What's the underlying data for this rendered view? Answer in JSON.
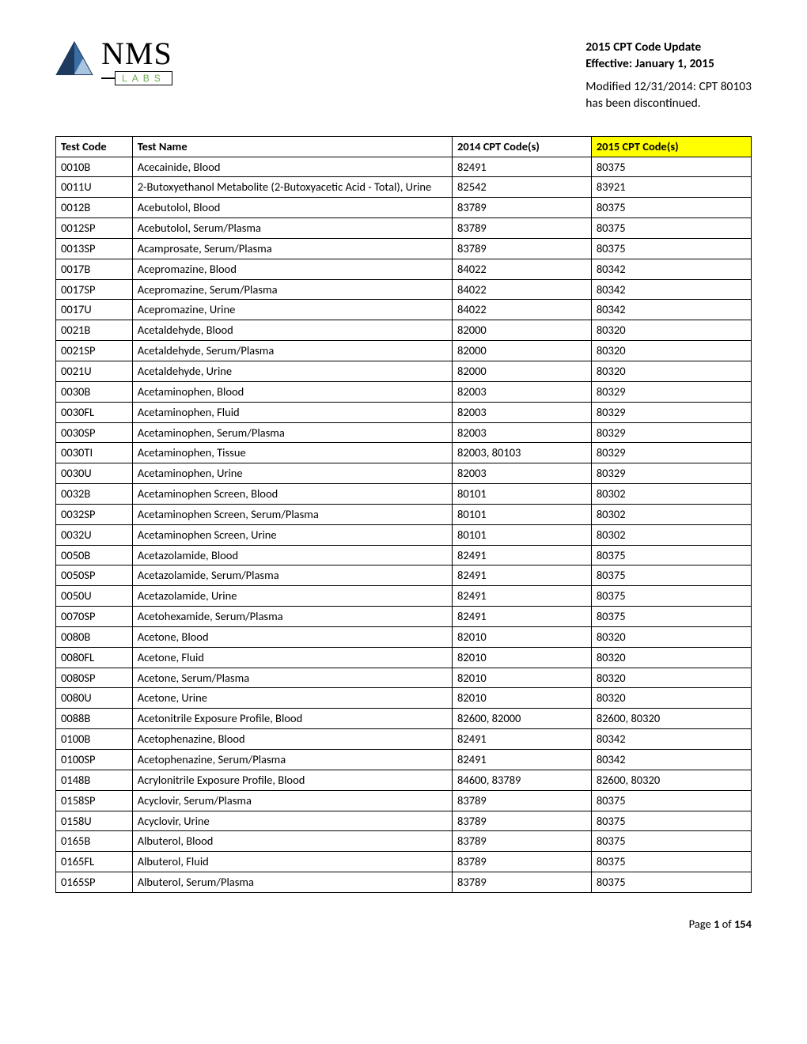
{
  "header": {
    "logo_nms": "NMS",
    "logo_labs": "LABS",
    "title_line1": "2015 CPT Code Update",
    "title_line2": "Effective: January 1, 2015",
    "modified_line1": "Modified 12/31/2014: CPT 80103",
    "modified_line2": "has been discontinued."
  },
  "table": {
    "columns": [
      "Test Code",
      "Test Name",
      "2014 CPT Code(s)",
      "2015 CPT Code(s)"
    ],
    "header_highlight_col_index": 3,
    "header_highlight_color": "#ffff00",
    "border_color": "#000000",
    "rows": [
      [
        "0010B",
        "Acecainide, Blood",
        "82491",
        "80375"
      ],
      [
        "0011U",
        "2-Butoxyethanol Metabolite (2-Butoxyacetic Acid - Total), Urine",
        "82542",
        "83921"
      ],
      [
        "0012B",
        "Acebutolol, Blood",
        "83789",
        "80375"
      ],
      [
        "0012SP",
        "Acebutolol, Serum/Plasma",
        "83789",
        "80375"
      ],
      [
        "0013SP",
        "Acamprosate, Serum/Plasma",
        "83789",
        "80375"
      ],
      [
        "0017B",
        "Acepromazine, Blood",
        "84022",
        "80342"
      ],
      [
        "0017SP",
        "Acepromazine, Serum/Plasma",
        "84022",
        "80342"
      ],
      [
        "0017U",
        "Acepromazine, Urine",
        "84022",
        "80342"
      ],
      [
        "0021B",
        "Acetaldehyde, Blood",
        "82000",
        "80320"
      ],
      [
        "0021SP",
        "Acetaldehyde, Serum/Plasma",
        "82000",
        "80320"
      ],
      [
        "0021U",
        "Acetaldehyde, Urine",
        "82000",
        "80320"
      ],
      [
        "0030B",
        "Acetaminophen, Blood",
        "82003",
        "80329"
      ],
      [
        "0030FL",
        "Acetaminophen,  Fluid",
        "82003",
        "80329"
      ],
      [
        "0030SP",
        "Acetaminophen, Serum/Plasma",
        "82003",
        "80329"
      ],
      [
        "0030TI",
        "Acetaminophen, Tissue",
        "82003, 80103",
        "80329"
      ],
      [
        "0030U",
        "Acetaminophen, Urine",
        "82003",
        "80329"
      ],
      [
        "0032B",
        "Acetaminophen Screen, Blood",
        "80101",
        "80302"
      ],
      [
        "0032SP",
        "Acetaminophen Screen, Serum/Plasma",
        "80101",
        "80302"
      ],
      [
        "0032U",
        "Acetaminophen Screen, Urine",
        "80101",
        "80302"
      ],
      [
        "0050B",
        "Acetazolamide, Blood",
        "82491",
        "80375"
      ],
      [
        "0050SP",
        "Acetazolamide, Serum/Plasma",
        "82491",
        "80375"
      ],
      [
        "0050U",
        "Acetazolamide, Urine",
        "82491",
        "80375"
      ],
      [
        "0070SP",
        "Acetohexamide, Serum/Plasma",
        "82491",
        "80375"
      ],
      [
        "0080B",
        "Acetone, Blood",
        "82010",
        "80320"
      ],
      [
        "0080FL",
        "Acetone, Fluid",
        "82010",
        "80320"
      ],
      [
        "0080SP",
        "Acetone, Serum/Plasma",
        "82010",
        "80320"
      ],
      [
        "0080U",
        "Acetone, Urine",
        "82010",
        "80320"
      ],
      [
        "0088B",
        "Acetonitrile Exposure Profile, Blood",
        "82600, 82000",
        "82600, 80320"
      ],
      [
        "0100B",
        "Acetophenazine, Blood",
        "82491",
        "80342"
      ],
      [
        "0100SP",
        "Acetophenazine, Serum/Plasma",
        "82491",
        "80342"
      ],
      [
        "0148B",
        "Acrylonitrile Exposure Profile, Blood",
        "84600, 83789",
        "82600, 80320"
      ],
      [
        "0158SP",
        "Acyclovir, Serum/Plasma",
        "83789",
        "80375"
      ],
      [
        "0158U",
        "Acyclovir, Urine",
        "83789",
        "80375"
      ],
      [
        "0165B",
        "Albuterol, Blood",
        "83789",
        "80375"
      ],
      [
        "0165FL",
        "Albuterol, Fluid",
        "83789",
        "80375"
      ],
      [
        "0165SP",
        "Albuterol, Serum/Plasma",
        "83789",
        "80375"
      ]
    ]
  },
  "footer": {
    "page_label_prefix": "Page ",
    "page_current": "1",
    "page_of": " of ",
    "page_total": "154"
  },
  "logo_colors": {
    "triangle_outline": "#1f3a5f",
    "triangle_internal_1": "#1f3a5f",
    "triangle_internal_2": "#3a6ea5",
    "triangle_internal_3": "#a9c4e0",
    "labs_text": "#6aa84f"
  }
}
